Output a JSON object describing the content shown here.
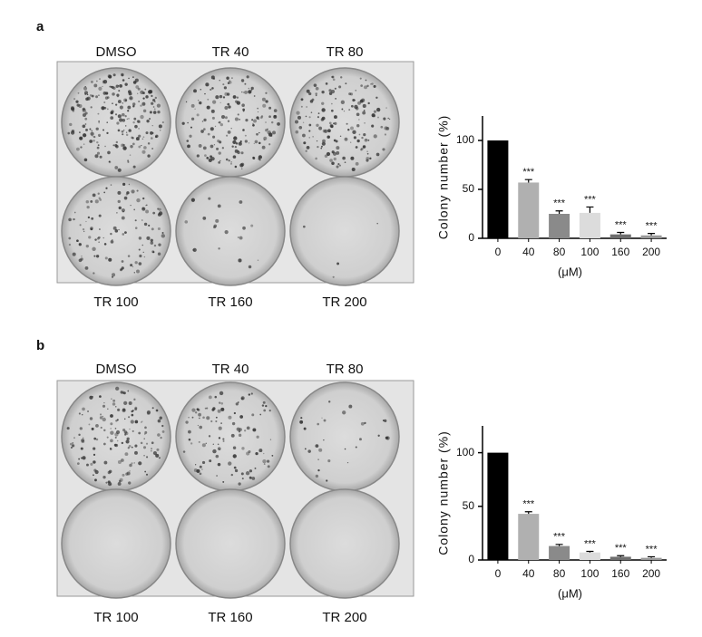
{
  "panels": [
    {
      "letter": "a",
      "plate_labels": [
        "DMSO",
        "TR 40",
        "TR 80",
        "TR 100",
        "TR 160",
        "TR 200"
      ]
    },
    {
      "letter": "b",
      "plate_labels": [
        "DMSO",
        "TR 40",
        "TR 80",
        "TR 100",
        "TR 160",
        "TR 200"
      ]
    }
  ],
  "chart_data": [
    {
      "type": "bar",
      "ylabel": "Colony number (%)",
      "xlabel": "(μM)",
      "categories": [
        "0",
        "40",
        "80",
        "100",
        "160",
        "200"
      ],
      "values": [
        100,
        57,
        25,
        26,
        4,
        3
      ],
      "errors": [
        0,
        3,
        3,
        6,
        2,
        2
      ],
      "annotations": [
        null,
        "***",
        "***",
        "***",
        "***",
        "***"
      ],
      "colors": [
        "#000000",
        "#b0b0b0",
        "#8a8a8a",
        "#dcdcdc",
        "#6e6e6e",
        "#9a9a9a"
      ],
      "ylim": [
        0,
        125
      ],
      "yticks": [
        0,
        50,
        100
      ]
    },
    {
      "type": "bar",
      "ylabel": "Colony number (%)",
      "xlabel": "(μM)",
      "categories": [
        "0",
        "40",
        "80",
        "100",
        "160",
        "200"
      ],
      "values": [
        100,
        43,
        13,
        7,
        3,
        2
      ],
      "errors": [
        0,
        2,
        1.5,
        1,
        1,
        1
      ],
      "annotations": [
        null,
        "***",
        "***",
        "***",
        "***",
        "***"
      ],
      "colors": [
        "#000000",
        "#b0b0b0",
        "#8a8a8a",
        "#dcdcdc",
        "#6e6e6e",
        "#9a9a9a"
      ],
      "ylim": [
        0,
        125
      ],
      "yticks": [
        0,
        50,
        100
      ]
    }
  ]
}
